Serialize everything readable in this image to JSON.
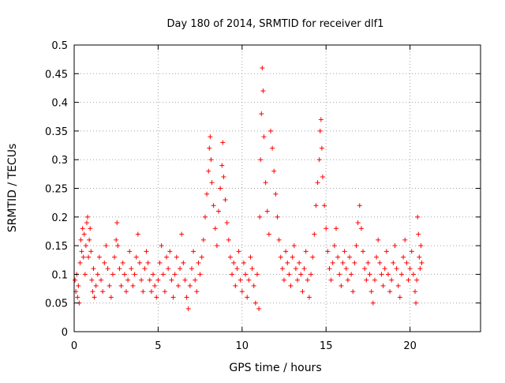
{
  "chart_data": {
    "type": "scatter",
    "title": "Day 180 of 2014, SRMTID for receiver dlf1",
    "xlabel": "GPS time / hours",
    "ylabel": "SRMTID / TECUs",
    "xlim": [
      0,
      24.2
    ],
    "ylim": [
      0,
      0.5
    ],
    "xticks": [
      0,
      5,
      10,
      15,
      20
    ],
    "xtick_labels": [
      "0",
      "5",
      "10",
      "15",
      "20"
    ],
    "yticks": [
      0,
      0.05,
      0.1,
      0.15,
      0.2,
      0.25,
      0.3,
      0.35,
      0.4,
      0.45,
      0.5
    ],
    "ytick_labels": [
      "0",
      "0.05",
      "0.1",
      "0.15",
      "0.2",
      "0.25",
      "0.3",
      "0.35",
      "0.4",
      "0.45",
      "0.5"
    ],
    "grid": true,
    "marker": "+",
    "color": "#ff0000",
    "series": [
      {
        "name": "SRMTID",
        "points": [
          [
            0.05,
            0.09
          ],
          [
            0.1,
            0.07
          ],
          [
            0.15,
            0.1
          ],
          [
            0.2,
            0.06
          ],
          [
            0.25,
            0.08
          ],
          [
            0.3,
            0.05
          ],
          [
            0.35,
            0.12
          ],
          [
            0.4,
            0.16
          ],
          [
            0.45,
            0.14
          ],
          [
            0.5,
            0.18
          ],
          [
            0.55,
            0.13
          ],
          [
            0.6,
            0.17
          ],
          [
            0.65,
            0.1
          ],
          [
            0.7,
            0.15
          ],
          [
            0.75,
            0.19
          ],
          [
            0.8,
            0.2
          ],
          [
            0.85,
            0.13
          ],
          [
            0.9,
            0.16
          ],
          [
            0.95,
            0.18
          ],
          [
            1.0,
            0.14
          ],
          [
            1.05,
            0.09
          ],
          [
            1.1,
            0.07
          ],
          [
            1.15,
            0.11
          ],
          [
            1.2,
            0.06
          ],
          [
            1.3,
            0.08
          ],
          [
            1.4,
            0.1
          ],
          [
            1.5,
            0.13
          ],
          [
            1.6,
            0.09
          ],
          [
            1.7,
            0.07
          ],
          [
            1.8,
            0.12
          ],
          [
            1.9,
            0.15
          ],
          [
            2.0,
            0.11
          ],
          [
            2.1,
            0.08
          ],
          [
            2.2,
            0.06
          ],
          [
            2.3,
            0.1
          ],
          [
            2.4,
            0.13
          ],
          [
            2.5,
            0.16
          ],
          [
            2.55,
            0.19
          ],
          [
            2.6,
            0.15
          ],
          [
            2.7,
            0.11
          ],
          [
            2.8,
            0.08
          ],
          [
            2.9,
            0.12
          ],
          [
            3.0,
            0.1
          ],
          [
            3.1,
            0.07
          ],
          [
            3.2,
            0.09
          ],
          [
            3.3,
            0.14
          ],
          [
            3.4,
            0.11
          ],
          [
            3.5,
            0.08
          ],
          [
            3.6,
            0.1
          ],
          [
            3.7,
            0.13
          ],
          [
            3.8,
            0.17
          ],
          [
            3.9,
            0.12
          ],
          [
            4.0,
            0.09
          ],
          [
            4.1,
            0.07
          ],
          [
            4.2,
            0.11
          ],
          [
            4.3,
            0.14
          ],
          [
            4.4,
            0.12
          ],
          [
            4.5,
            0.09
          ],
          [
            4.6,
            0.07
          ],
          [
            4.7,
            0.1
          ],
          [
            4.8,
            0.08
          ],
          [
            4.9,
            0.06
          ],
          [
            5.0,
            0.09
          ],
          [
            5.1,
            0.12
          ],
          [
            5.2,
            0.15
          ],
          [
            5.3,
            0.1
          ],
          [
            5.4,
            0.07
          ],
          [
            5.5,
            0.13
          ],
          [
            5.6,
            0.11
          ],
          [
            5.7,
            0.14
          ],
          [
            5.8,
            0.09
          ],
          [
            5.9,
            0.06
          ],
          [
            6.0,
            0.1
          ],
          [
            6.1,
            0.13
          ],
          [
            6.2,
            0.08
          ],
          [
            6.3,
            0.11
          ],
          [
            6.4,
            0.17
          ],
          [
            6.5,
            0.12
          ],
          [
            6.6,
            0.09
          ],
          [
            6.7,
            0.06
          ],
          [
            6.8,
            0.04
          ],
          [
            6.9,
            0.08
          ],
          [
            7.0,
            0.11
          ],
          [
            7.1,
            0.14
          ],
          [
            7.2,
            0.09
          ],
          [
            7.3,
            0.07
          ],
          [
            7.4,
            0.12
          ],
          [
            7.5,
            0.1
          ],
          [
            7.6,
            0.13
          ],
          [
            7.7,
            0.16
          ],
          [
            7.8,
            0.2
          ],
          [
            7.9,
            0.24
          ],
          [
            8.0,
            0.28
          ],
          [
            8.05,
            0.32
          ],
          [
            8.1,
            0.34
          ],
          [
            8.15,
            0.3
          ],
          [
            8.2,
            0.26
          ],
          [
            8.3,
            0.22
          ],
          [
            8.4,
            0.18
          ],
          [
            8.5,
            0.15
          ],
          [
            8.6,
            0.21
          ],
          [
            8.7,
            0.25
          ],
          [
            8.8,
            0.29
          ],
          [
            8.85,
            0.33
          ],
          [
            8.9,
            0.27
          ],
          [
            9.0,
            0.23
          ],
          [
            9.1,
            0.19
          ],
          [
            9.2,
            0.16
          ],
          [
            9.3,
            0.13
          ],
          [
            9.4,
            0.1
          ],
          [
            9.5,
            0.12
          ],
          [
            9.6,
            0.08
          ],
          [
            9.7,
            0.11
          ],
          [
            9.8,
            0.14
          ],
          [
            9.9,
            0.09
          ],
          [
            10.0,
            0.07
          ],
          [
            10.1,
            0.12
          ],
          [
            10.2,
            0.1
          ],
          [
            10.3,
            0.06
          ],
          [
            10.4,
            0.09
          ],
          [
            10.5,
            0.13
          ],
          [
            10.6,
            0.11
          ],
          [
            10.7,
            0.08
          ],
          [
            10.8,
            0.05
          ],
          [
            10.9,
            0.1
          ],
          [
            11.0,
            0.04
          ],
          [
            11.05,
            0.2
          ],
          [
            11.1,
            0.3
          ],
          [
            11.15,
            0.38
          ],
          [
            11.2,
            0.46
          ],
          [
            11.25,
            0.42
          ],
          [
            11.3,
            0.34
          ],
          [
            11.4,
            0.26
          ],
          [
            11.5,
            0.21
          ],
          [
            11.6,
            0.17
          ],
          [
            11.7,
            0.35
          ],
          [
            11.8,
            0.32
          ],
          [
            11.9,
            0.28
          ],
          [
            12.0,
            0.24
          ],
          [
            12.1,
            0.2
          ],
          [
            12.2,
            0.16
          ],
          [
            12.3,
            0.13
          ],
          [
            12.4,
            0.11
          ],
          [
            12.5,
            0.09
          ],
          [
            12.6,
            0.14
          ],
          [
            12.7,
            0.12
          ],
          [
            12.8,
            0.1
          ],
          [
            12.9,
            0.08
          ],
          [
            13.0,
            0.13
          ],
          [
            13.1,
            0.15
          ],
          [
            13.2,
            0.11
          ],
          [
            13.3,
            0.09
          ],
          [
            13.4,
            0.12
          ],
          [
            13.5,
            0.1
          ],
          [
            13.6,
            0.07
          ],
          [
            13.7,
            0.11
          ],
          [
            13.8,
            0.14
          ],
          [
            13.9,
            0.09
          ],
          [
            14.0,
            0.06
          ],
          [
            14.1,
            0.1
          ],
          [
            14.2,
            0.13
          ],
          [
            14.3,
            0.17
          ],
          [
            14.4,
            0.22
          ],
          [
            14.5,
            0.26
          ],
          [
            14.6,
            0.3
          ],
          [
            14.65,
            0.35
          ],
          [
            14.7,
            0.37
          ],
          [
            14.75,
            0.32
          ],
          [
            14.8,
            0.27
          ],
          [
            14.9,
            0.22
          ],
          [
            15.0,
            0.18
          ],
          [
            15.1,
            0.14
          ],
          [
            15.2,
            0.11
          ],
          [
            15.3,
            0.09
          ],
          [
            15.4,
            0.12
          ],
          [
            15.5,
            0.15
          ],
          [
            15.6,
            0.18
          ],
          [
            15.7,
            0.13
          ],
          [
            15.8,
            0.1
          ],
          [
            15.9,
            0.08
          ],
          [
            16.0,
            0.12
          ],
          [
            16.1,
            0.14
          ],
          [
            16.2,
            0.11
          ],
          [
            16.3,
            0.09
          ],
          [
            16.4,
            0.13
          ],
          [
            16.5,
            0.1
          ],
          [
            16.6,
            0.07
          ],
          [
            16.7,
            0.12
          ],
          [
            16.8,
            0.15
          ],
          [
            16.9,
            0.19
          ],
          [
            17.0,
            0.22
          ],
          [
            17.1,
            0.18
          ],
          [
            17.2,
            0.14
          ],
          [
            17.3,
            0.11
          ],
          [
            17.4,
            0.09
          ],
          [
            17.5,
            0.12
          ],
          [
            17.6,
            0.1
          ],
          [
            17.7,
            0.07
          ],
          [
            17.8,
            0.05
          ],
          [
            17.9,
            0.09
          ],
          [
            18.0,
            0.13
          ],
          [
            18.1,
            0.16
          ],
          [
            18.2,
            0.12
          ],
          [
            18.3,
            0.1
          ],
          [
            18.4,
            0.08
          ],
          [
            18.5,
            0.11
          ],
          [
            18.6,
            0.14
          ],
          [
            18.7,
            0.1
          ],
          [
            18.8,
            0.07
          ],
          [
            18.9,
            0.09
          ],
          [
            19.0,
            0.12
          ],
          [
            19.1,
            0.15
          ],
          [
            19.2,
            0.11
          ],
          [
            19.3,
            0.08
          ],
          [
            19.4,
            0.06
          ],
          [
            19.5,
            0.1
          ],
          [
            19.6,
            0.13
          ],
          [
            19.7,
            0.16
          ],
          [
            19.8,
            0.12
          ],
          [
            19.9,
            0.09
          ],
          [
            20.0,
            0.11
          ],
          [
            20.1,
            0.14
          ],
          [
            20.2,
            0.1
          ],
          [
            20.3,
            0.07
          ],
          [
            20.35,
            0.05
          ],
          [
            20.4,
            0.09
          ],
          [
            20.45,
            0.2
          ],
          [
            20.5,
            0.17
          ],
          [
            20.55,
            0.13
          ],
          [
            20.6,
            0.11
          ],
          [
            20.65,
            0.15
          ],
          [
            20.7,
            0.12
          ]
        ]
      }
    ]
  }
}
